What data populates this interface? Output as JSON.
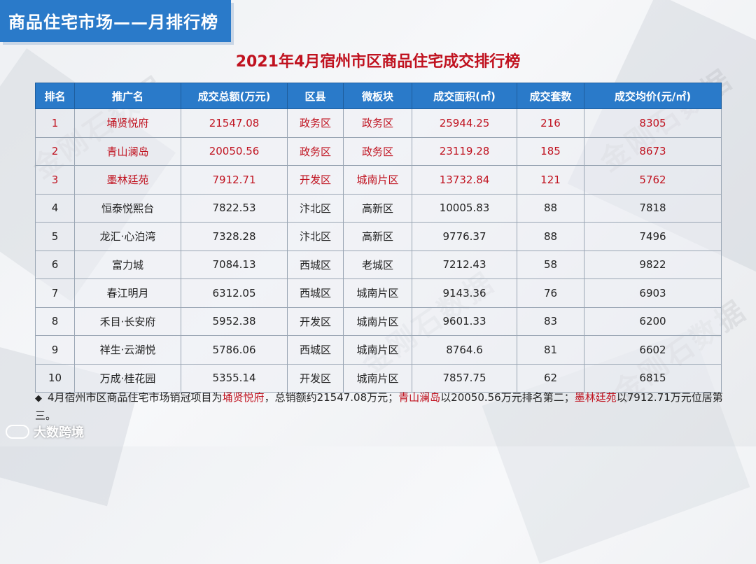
{
  "header": {
    "title": "商品住宅市场——月排行榜"
  },
  "table_title": "2021年4月宿州市区商品住宅成交排行榜",
  "watermark": "金刚石数据",
  "columns": [
    "排名",
    "推广名",
    "成交总额(万元)",
    "区县",
    "微板块",
    "成交面积(㎡)",
    "成交套数",
    "成交均价(元/㎡)"
  ],
  "rows": [
    [
      "1",
      "埇贤悦府",
      "21547.08",
      "政务区",
      "政务区",
      "25944.25",
      "216",
      "8305"
    ],
    [
      "2",
      "青山澜岛",
      "20050.56",
      "政务区",
      "政务区",
      "23119.28",
      "185",
      "8673"
    ],
    [
      "3",
      "墨林廷苑",
      "7912.71",
      "开发区",
      "城南片区",
      "13732.84",
      "121",
      "5762"
    ],
    [
      "4",
      "恒泰悦熙台",
      "7822.53",
      "汴北区",
      "高新区",
      "10005.83",
      "88",
      "7818"
    ],
    [
      "5",
      "龙汇·心泊湾",
      "7328.28",
      "汴北区",
      "高新区",
      "9776.37",
      "88",
      "7496"
    ],
    [
      "6",
      "富力城",
      "7084.13",
      "西城区",
      "老城区",
      "7212.43",
      "58",
      "9822"
    ],
    [
      "7",
      "春江明月",
      "6312.05",
      "西城区",
      "城南片区",
      "9143.36",
      "76",
      "6903"
    ],
    [
      "8",
      "禾目·长安府",
      "5952.38",
      "开发区",
      "城南片区",
      "9601.33",
      "83",
      "6200"
    ],
    [
      "9",
      "祥生·云湖悦",
      "5786.06",
      "西城区",
      "城南片区",
      "8764.6",
      "81",
      "6602"
    ],
    [
      "10",
      "万成·桂花园",
      "5355.14",
      "开发区",
      "城南片区",
      "7857.75",
      "62",
      "6815"
    ]
  ],
  "highlight_color": "#c0121f",
  "summary": {
    "bullet": "◆",
    "part1": "4月宿州市区商品住宅市场销冠项目为",
    "name1": "埇贤悦府",
    "part2": "，总销额约21547.08万元；",
    "name2": "青山澜岛",
    "part3": "以20050.56万元排名第二；",
    "name3": "墨林廷苑",
    "part4": "以7912.71万元位居第三。"
  },
  "logo": {
    "icon": "logo-icon",
    "text": "大数跨境"
  }
}
